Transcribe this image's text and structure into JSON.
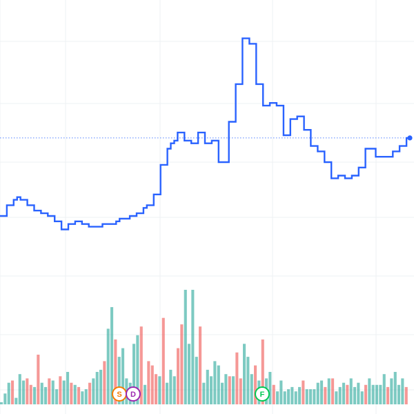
{
  "colors": {
    "price_line": "#2962ff",
    "volume_up": "#26a69a",
    "volume_down": "#ef5350",
    "grid": "#eef0f3",
    "reference_line": "#2962ff",
    "marker_s": "#f57c00",
    "marker_d": "#9c27b0",
    "marker_f": "#00c853"
  },
  "chart_data": {
    "type": "line",
    "title": "",
    "xlabel": "",
    "ylabel": "",
    "grid": true,
    "line_shape": "step",
    "price_range": [
      0,
      100
    ],
    "reference_level": 59,
    "price": [
      30,
      30,
      34,
      34,
      36,
      37,
      36,
      36,
      34,
      34,
      32,
      32,
      31,
      31,
      30,
      30,
      28,
      28,
      25,
      25,
      27,
      27,
      28,
      28,
      27,
      27,
      26,
      26,
      26,
      26,
      27,
      27,
      27,
      27,
      28,
      29,
      29,
      29,
      30,
      30,
      31,
      31,
      33,
      34,
      34,
      38,
      38,
      49,
      49,
      55,
      57,
      58,
      61,
      61,
      58,
      58,
      57,
      57,
      61,
      61,
      57,
      57,
      58,
      58,
      50,
      50,
      50,
      65,
      65,
      79,
      79,
      96,
      96,
      94,
      94,
      79,
      79,
      71,
      71,
      72,
      72,
      71,
      71,
      60,
      60,
      66,
      66,
      67,
      67,
      62,
      62,
      56,
      56,
      54,
      54,
      50,
      50,
      44,
      44,
      45,
      45,
      44,
      44,
      45,
      45,
      48,
      48,
      55,
      55,
      55,
      52,
      52,
      52,
      52,
      52,
      54,
      54,
      56,
      56,
      59,
      59
    ],
    "volume": {
      "values": [
        1,
        5,
        10,
        11,
        3,
        14,
        11,
        12,
        9,
        8,
        23,
        10,
        8,
        12,
        11,
        7,
        13,
        11,
        15,
        10,
        9,
        8,
        6,
        7,
        10,
        12,
        15,
        16,
        20,
        35,
        45,
        30,
        22,
        26,
        12,
        10,
        28,
        32,
        36,
        9,
        20,
        18,
        14,
        13,
        40,
        10,
        16,
        13,
        26,
        37,
        53,
        28,
        53,
        22,
        36,
        10,
        16,
        13,
        20,
        18,
        10,
        14,
        13,
        13,
        24,
        12,
        28,
        22,
        14,
        18,
        11,
        30,
        12,
        15,
        9,
        6,
        11,
        6,
        7,
        8,
        6,
        8,
        11,
        7,
        7,
        7,
        10,
        11,
        8,
        12,
        12,
        6,
        8,
        10,
        9,
        12,
        8,
        10,
        6,
        9,
        12,
        9,
        9,
        9,
        14,
        8,
        12,
        15,
        9,
        12,
        8
      ],
      "directions": [
        "u",
        "u",
        "u",
        "d",
        "u",
        "u",
        "u",
        "d",
        "d",
        "u",
        "d",
        "u",
        "u",
        "d",
        "u",
        "u",
        "d",
        "u",
        "u",
        "d",
        "u",
        "d",
        "u",
        "u",
        "d",
        "u",
        "u",
        "u",
        "d",
        "u",
        "u",
        "d",
        "u",
        "u",
        "u",
        "u",
        "u",
        "u",
        "d",
        "u",
        "d",
        "d",
        "d",
        "u",
        "d",
        "u",
        "u",
        "u",
        "d",
        "d",
        "u",
        "u",
        "u",
        "u",
        "d",
        "u",
        "u",
        "u",
        "u",
        "u",
        "u",
        "u",
        "d",
        "u",
        "d",
        "d",
        "u",
        "u",
        "u",
        "d",
        "u",
        "d",
        "u",
        "u",
        "d",
        "u",
        "u",
        "u",
        "u",
        "u",
        "u",
        "u",
        "d",
        "u",
        "u",
        "u",
        "u",
        "u",
        "d",
        "u",
        "d",
        "u",
        "u",
        "u",
        "d",
        "u",
        "u",
        "u",
        "u",
        "d",
        "u",
        "u",
        "u",
        "u",
        "u",
        "d",
        "u",
        "u",
        "u",
        "u",
        "d"
      ]
    },
    "markers": [
      {
        "label": "S",
        "color_key": "marker_s"
      },
      {
        "label": "D",
        "color_key": "marker_d"
      },
      {
        "label": "F",
        "color_key": "marker_f"
      }
    ]
  }
}
